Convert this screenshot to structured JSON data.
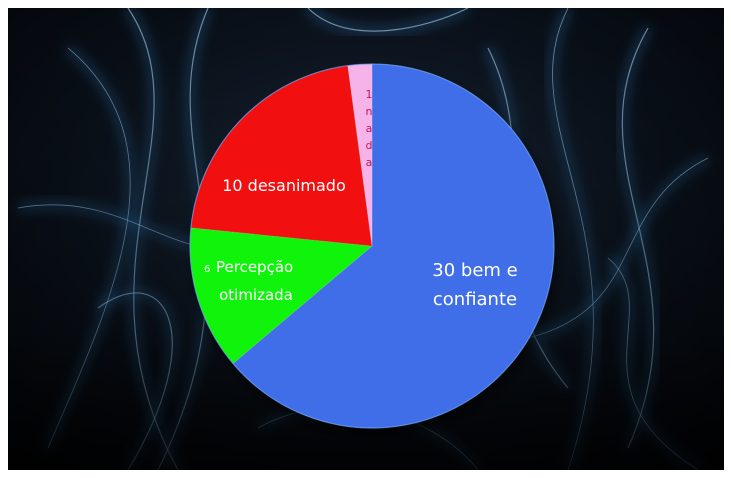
{
  "chart_data": {
    "type": "pie",
    "slices": [
      {
        "key": "bem",
        "count": 30,
        "label": "bem e confiante",
        "color": "#3f6ee8"
      },
      {
        "key": "percepcao",
        "count": 6,
        "label": "Percepção otimizada",
        "color": "#0ff40a"
      },
      {
        "key": "desanimado",
        "count": 10,
        "label": "desanimado",
        "color": "#f20f0f"
      },
      {
        "key": "nada",
        "count": 1,
        "label": "nada",
        "color": "#f5b3ea"
      }
    ],
    "total": 47,
    "start": "12 o'clock",
    "direction": "clockwise"
  },
  "labels": {
    "bem_line1": "30 bem e",
    "bem_line2": "confiante",
    "percepcao_count": "6",
    "percepcao_line1": "Percepção",
    "percepcao_line2": "otimizada",
    "desanimado": "10 desanimado",
    "nada_chars": [
      "1",
      "n",
      "a",
      "d",
      "a"
    ]
  },
  "colors": {
    "background": "#060a10",
    "glow": "#3fa8ff",
    "label_text": "#ffffff",
    "nada_text": "#c2185b"
  }
}
